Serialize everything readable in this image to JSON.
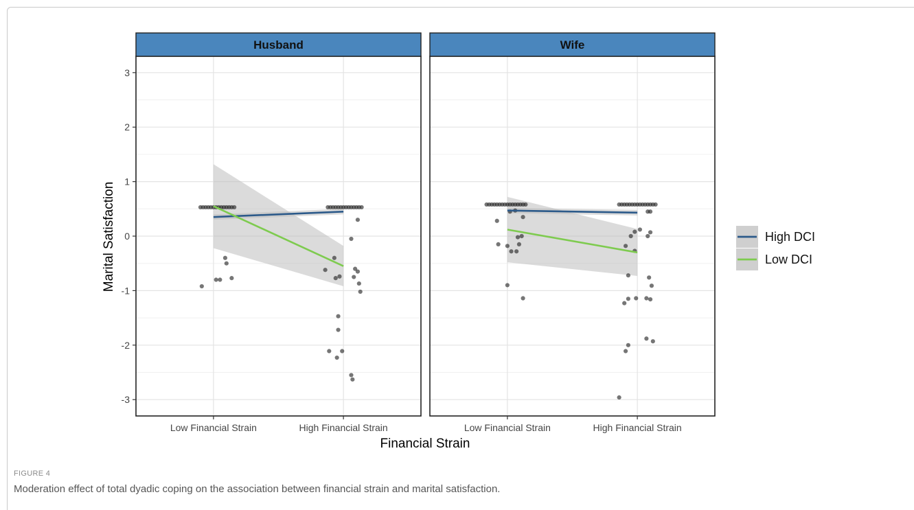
{
  "figure": {
    "label": "FIGURE 4",
    "caption": "Moderation effect of total dyadic coping on the association between financial strain and marital satisfaction."
  },
  "chart_data": {
    "type": "scatter",
    "xlabel": "Financial Strain",
    "ylabel": "Marital Satisfaction",
    "categories": [
      "Low Financial Strain",
      "High Financial Strain"
    ],
    "ylim": [
      -3.3,
      3.3
    ],
    "yticks": [
      3,
      2,
      1,
      0,
      -1,
      -2,
      -3
    ],
    "grid": true,
    "legend": {
      "placement": "right",
      "entries": [
        {
          "name": "High DCI",
          "color": "#2c5a8a"
        },
        {
          "name": "Low DCI",
          "color": "#7ecb4f"
        }
      ]
    },
    "colors": {
      "strip": "#4a86bd",
      "band": "#bdbdbd",
      "point": "#222222"
    },
    "panels": [
      {
        "title": "Husband",
        "lines": [
          {
            "series": "High DCI",
            "y": [
              0.35,
              0.45
            ],
            "ci_low": [
              0.3,
              0.4
            ],
            "ci_high": [
              0.4,
              0.5
            ]
          },
          {
            "series": "Low DCI",
            "y": [
              0.55,
              -0.55
            ],
            "ci_low": [
              -0.22,
              -0.92
            ],
            "ci_high": [
              1.32,
              -0.18
            ]
          }
        ],
        "points": [
          {
            "x": -0.1,
            "y": 0.53
          },
          {
            "x": -0.08,
            "y": 0.53
          },
          {
            "x": -0.06,
            "y": 0.53
          },
          {
            "x": -0.04,
            "y": 0.53
          },
          {
            "x": -0.02,
            "y": 0.53
          },
          {
            "x": 0.0,
            "y": 0.53
          },
          {
            "x": 0.02,
            "y": 0.53
          },
          {
            "x": 0.04,
            "y": 0.53
          },
          {
            "x": 0.06,
            "y": 0.53
          },
          {
            "x": 0.08,
            "y": 0.53
          },
          {
            "x": 0.1,
            "y": 0.53
          },
          {
            "x": 0.12,
            "y": 0.53
          },
          {
            "x": 0.14,
            "y": 0.53
          },
          {
            "x": 0.16,
            "y": 0.53
          },
          {
            "x": -0.09,
            "y": -0.92
          },
          {
            "x": 0.02,
            "y": -0.8
          },
          {
            "x": 0.05,
            "y": -0.8
          },
          {
            "x": 0.09,
            "y": -0.4
          },
          {
            "x": 0.1,
            "y": -0.5
          },
          {
            "x": 0.14,
            "y": -0.77
          },
          {
            "x": 0.88,
            "y": 0.53
          },
          {
            "x": 0.9,
            "y": 0.53
          },
          {
            "x": 0.92,
            "y": 0.53
          },
          {
            "x": 0.94,
            "y": 0.53
          },
          {
            "x": 0.96,
            "y": 0.53
          },
          {
            "x": 0.98,
            "y": 0.53
          },
          {
            "x": 1.0,
            "y": 0.53
          },
          {
            "x": 1.02,
            "y": 0.53
          },
          {
            "x": 1.04,
            "y": 0.53
          },
          {
            "x": 1.06,
            "y": 0.53
          },
          {
            "x": 1.08,
            "y": 0.53
          },
          {
            "x": 1.1,
            "y": 0.53
          },
          {
            "x": 1.12,
            "y": 0.53
          },
          {
            "x": 1.14,
            "y": 0.53
          },
          {
            "x": 0.86,
            "y": -0.62
          },
          {
            "x": 0.93,
            "y": -0.4
          },
          {
            "x": 0.94,
            "y": -0.77
          },
          {
            "x": 0.97,
            "y": -0.74
          },
          {
            "x": 1.06,
            "y": -0.05
          },
          {
            "x": 1.08,
            "y": -0.75
          },
          {
            "x": 1.09,
            "y": -0.6
          },
          {
            "x": 1.11,
            "y": -0.65
          },
          {
            "x": 1.11,
            "y": 0.3
          },
          {
            "x": 1.12,
            "y": -0.87
          },
          {
            "x": 1.13,
            "y": -1.02
          },
          {
            "x": 0.96,
            "y": -1.47
          },
          {
            "x": 0.96,
            "y": -1.72
          },
          {
            "x": 0.89,
            "y": -2.11
          },
          {
            "x": 0.95,
            "y": -2.23
          },
          {
            "x": 0.99,
            "y": -2.11
          },
          {
            "x": 1.06,
            "y": -2.55
          },
          {
            "x": 1.07,
            "y": -2.63
          }
        ]
      },
      {
        "title": "Wife",
        "lines": [
          {
            "series": "High DCI",
            "y": [
              0.47,
              0.43
            ],
            "ci_low": [
              0.42,
              0.38
            ],
            "ci_high": [
              0.52,
              0.48
            ]
          },
          {
            "series": "Low DCI",
            "y": [
              0.12,
              -0.3
            ],
            "ci_low": [
              -0.48,
              -0.73
            ],
            "ci_high": [
              0.72,
              0.13
            ]
          }
        ],
        "points": [
          {
            "x": -0.16,
            "y": 0.58
          },
          {
            "x": -0.14,
            "y": 0.58
          },
          {
            "x": -0.12,
            "y": 0.58
          },
          {
            "x": -0.1,
            "y": 0.58
          },
          {
            "x": -0.08,
            "y": 0.58
          },
          {
            "x": -0.06,
            "y": 0.58
          },
          {
            "x": -0.04,
            "y": 0.58
          },
          {
            "x": -0.02,
            "y": 0.58
          },
          {
            "x": 0.0,
            "y": 0.58
          },
          {
            "x": 0.02,
            "y": 0.58
          },
          {
            "x": 0.04,
            "y": 0.58
          },
          {
            "x": 0.06,
            "y": 0.58
          },
          {
            "x": 0.08,
            "y": 0.58
          },
          {
            "x": 0.1,
            "y": 0.58
          },
          {
            "x": 0.12,
            "y": 0.58
          },
          {
            "x": 0.14,
            "y": 0.58
          },
          {
            "x": -0.08,
            "y": 0.28
          },
          {
            "x": 0.02,
            "y": 0.45
          },
          {
            "x": 0.06,
            "y": 0.47
          },
          {
            "x": 0.12,
            "y": 0.35
          },
          {
            "x": -0.07,
            "y": -0.15
          },
          {
            "x": 0.0,
            "y": -0.18
          },
          {
            "x": 0.03,
            "y": -0.28
          },
          {
            "x": 0.07,
            "y": -0.28
          },
          {
            "x": 0.08,
            "y": -0.02
          },
          {
            "x": 0.09,
            "y": -0.15
          },
          {
            "x": 0.11,
            "y": 0.0
          },
          {
            "x": 0.0,
            "y": -0.9
          },
          {
            "x": 0.12,
            "y": -1.14
          },
          {
            "x": 0.86,
            "y": 0.58
          },
          {
            "x": 0.88,
            "y": 0.58
          },
          {
            "x": 0.9,
            "y": 0.58
          },
          {
            "x": 0.92,
            "y": 0.58
          },
          {
            "x": 0.94,
            "y": 0.58
          },
          {
            "x": 0.96,
            "y": 0.58
          },
          {
            "x": 0.98,
            "y": 0.58
          },
          {
            "x": 1.0,
            "y": 0.58
          },
          {
            "x": 1.02,
            "y": 0.58
          },
          {
            "x": 1.04,
            "y": 0.58
          },
          {
            "x": 1.06,
            "y": 0.58
          },
          {
            "x": 1.08,
            "y": 0.58
          },
          {
            "x": 1.1,
            "y": 0.58
          },
          {
            "x": 1.12,
            "y": 0.58
          },
          {
            "x": 1.14,
            "y": 0.58
          },
          {
            "x": 1.08,
            "y": 0.45
          },
          {
            "x": 1.1,
            "y": 0.45
          },
          {
            "x": 0.91,
            "y": -0.18
          },
          {
            "x": 0.95,
            "y": 0.0
          },
          {
            "x": 0.98,
            "y": -0.27
          },
          {
            "x": 0.98,
            "y": 0.08
          },
          {
            "x": 1.02,
            "y": 0.12
          },
          {
            "x": 1.08,
            "y": 0.0
          },
          {
            "x": 1.1,
            "y": 0.07
          },
          {
            "x": 0.93,
            "y": -0.72
          },
          {
            "x": 1.09,
            "y": -0.76
          },
          {
            "x": 1.11,
            "y": -0.91
          },
          {
            "x": 0.9,
            "y": -1.23
          },
          {
            "x": 0.93,
            "y": -1.15
          },
          {
            "x": 0.99,
            "y": -1.14
          },
          {
            "x": 1.07,
            "y": -1.14
          },
          {
            "x": 1.1,
            "y": -1.16
          },
          {
            "x": 0.93,
            "y": -2.0
          },
          {
            "x": 0.91,
            "y": -2.11
          },
          {
            "x": 1.07,
            "y": -1.88
          },
          {
            "x": 1.12,
            "y": -1.93
          },
          {
            "x": 0.86,
            "y": -2.96
          }
        ]
      }
    ]
  }
}
